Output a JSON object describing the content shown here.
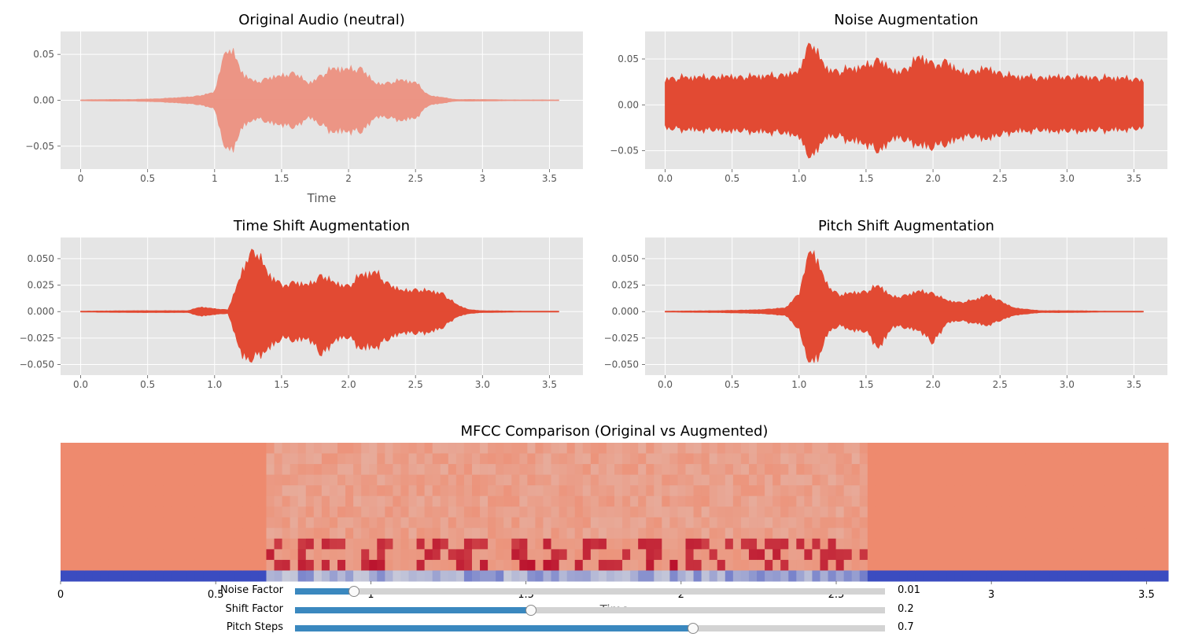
{
  "chart_data": [
    {
      "type": "line",
      "title": "Original Audio (neutral)",
      "xlabel": "Time",
      "ylabel": "",
      "xlim": [
        -0.15,
        3.75
      ],
      "ylim": [
        -0.075,
        0.075
      ],
      "xticks": [
        "0",
        "0.5",
        "1",
        "1.5",
        "2",
        "2.5",
        "3",
        "3.5"
      ],
      "yticks": [
        "0.05",
        "0.00",
        "−0.05"
      ],
      "x": [
        0.0,
        0.2,
        0.4,
        0.6,
        0.8,
        0.9,
        1.0,
        1.05,
        1.1,
        1.15,
        1.2,
        1.3,
        1.4,
        1.5,
        1.6,
        1.7,
        1.8,
        1.9,
        2.0,
        2.1,
        2.2,
        2.3,
        2.4,
        2.5,
        2.6,
        2.8,
        3.0,
        3.2,
        3.4,
        3.57
      ],
      "y_upper": [
        0.0005,
        0.001,
        0.001,
        0.002,
        0.004,
        0.006,
        0.01,
        0.045,
        0.068,
        0.055,
        0.035,
        0.022,
        0.028,
        0.03,
        0.035,
        0.02,
        0.032,
        0.04,
        0.038,
        0.04,
        0.02,
        0.022,
        0.025,
        0.022,
        0.006,
        0.001,
        0.001,
        0.0005,
        0.0005,
        0.0005
      ],
      "y_lower": [
        -0.0005,
        -0.001,
        -0.001,
        -0.002,
        -0.004,
        -0.006,
        -0.01,
        -0.045,
        -0.068,
        -0.055,
        -0.035,
        -0.022,
        -0.028,
        -0.03,
        -0.035,
        -0.02,
        -0.032,
        -0.04,
        -0.038,
        -0.04,
        -0.02,
        -0.022,
        -0.025,
        -0.022,
        -0.006,
        -0.001,
        -0.001,
        -0.0005,
        -0.0005,
        -0.0005
      ],
      "color": "#ec9585"
    },
    {
      "type": "line",
      "title": "Noise Augmentation",
      "xlabel": "",
      "ylabel": "",
      "xlim": [
        -0.15,
        3.75
      ],
      "ylim": [
        -0.07,
        0.08
      ],
      "xticks": [
        "0.0",
        "0.5",
        "1.0",
        "1.5",
        "2.0",
        "2.5",
        "3.0",
        "3.5"
      ],
      "yticks": [
        "0.05",
        "0.00",
        "−0.05"
      ],
      "x": [
        0.0,
        0.2,
        0.4,
        0.6,
        0.8,
        1.0,
        1.05,
        1.1,
        1.15,
        1.2,
        1.3,
        1.4,
        1.5,
        1.6,
        1.7,
        1.8,
        1.9,
        2.0,
        2.1,
        2.2,
        2.3,
        2.4,
        2.5,
        2.6,
        2.8,
        3.0,
        3.2,
        3.4,
        3.57
      ],
      "y_upper": [
        0.033,
        0.034,
        0.035,
        0.035,
        0.036,
        0.04,
        0.07,
        0.078,
        0.06,
        0.045,
        0.042,
        0.045,
        0.048,
        0.058,
        0.04,
        0.045,
        0.06,
        0.052,
        0.055,
        0.04,
        0.042,
        0.045,
        0.04,
        0.035,
        0.034,
        0.035,
        0.034,
        0.033,
        0.032
      ],
      "y_lower": [
        -0.03,
        -0.031,
        -0.032,
        -0.033,
        -0.034,
        -0.038,
        -0.06,
        -0.068,
        -0.05,
        -0.04,
        -0.04,
        -0.045,
        -0.048,
        -0.06,
        -0.04,
        -0.045,
        -0.05,
        -0.055,
        -0.05,
        -0.04,
        -0.04,
        -0.042,
        -0.038,
        -0.033,
        -0.032,
        -0.033,
        -0.032,
        -0.031,
        -0.03
      ],
      "color": "#e24a33"
    },
    {
      "type": "line",
      "title": "Time Shift Augmentation",
      "xlabel": "",
      "ylabel": "",
      "xlim": [
        -0.15,
        3.75
      ],
      "ylim": [
        -0.06,
        0.07
      ],
      "xticks": [
        "0.0",
        "0.5",
        "1.0",
        "1.5",
        "2.0",
        "2.5",
        "3.0",
        "3.5"
      ],
      "yticks": [
        "0.050",
        "0.025",
        "0.000",
        "−0.025",
        "−0.050"
      ],
      "x": [
        0.0,
        0.4,
        0.8,
        0.9,
        1.0,
        1.1,
        1.2,
        1.25,
        1.3,
        1.35,
        1.4,
        1.5,
        1.6,
        1.7,
        1.8,
        1.9,
        2.0,
        2.1,
        2.2,
        2.3,
        2.4,
        2.5,
        2.6,
        2.7,
        2.8,
        2.9,
        3.0,
        3.3,
        3.57
      ],
      "y_upper": [
        0.0005,
        0.001,
        0.001,
        0.005,
        0.003,
        0.002,
        0.04,
        0.06,
        0.068,
        0.055,
        0.04,
        0.03,
        0.032,
        0.028,
        0.04,
        0.03,
        0.028,
        0.04,
        0.042,
        0.03,
        0.022,
        0.024,
        0.022,
        0.02,
        0.008,
        0.002,
        0.001,
        0.0005,
        0.0005
      ],
      "y_lower": [
        -0.0005,
        -0.001,
        -0.001,
        -0.005,
        -0.003,
        -0.002,
        -0.045,
        -0.055,
        -0.05,
        -0.045,
        -0.04,
        -0.03,
        -0.032,
        -0.028,
        -0.048,
        -0.03,
        -0.028,
        -0.04,
        -0.038,
        -0.03,
        -0.022,
        -0.024,
        -0.022,
        -0.018,
        -0.006,
        -0.002,
        -0.001,
        -0.0005,
        -0.0005
      ],
      "color": "#e24a33"
    },
    {
      "type": "line",
      "title": "Pitch Shift Augmentation",
      "xlabel": "",
      "ylabel": "",
      "xlim": [
        -0.15,
        3.75
      ],
      "ylim": [
        -0.06,
        0.07
      ],
      "xticks": [
        "0.0",
        "0.5",
        "1.0",
        "1.5",
        "2.0",
        "2.5",
        "3.0",
        "3.5"
      ],
      "yticks": [
        "0.050",
        "0.025",
        "0.000",
        "−0.025",
        "−0.050"
      ],
      "x": [
        0.0,
        0.4,
        0.7,
        0.8,
        0.9,
        1.0,
        1.05,
        1.1,
        1.15,
        1.2,
        1.3,
        1.4,
        1.5,
        1.6,
        1.7,
        1.8,
        1.9,
        2.0,
        2.1,
        2.2,
        2.3,
        2.4,
        2.5,
        2.6,
        2.8,
        3.0,
        3.3,
        3.57
      ],
      "y_upper": [
        0.0005,
        0.001,
        0.002,
        0.003,
        0.004,
        0.02,
        0.055,
        0.068,
        0.05,
        0.03,
        0.018,
        0.02,
        0.022,
        0.028,
        0.015,
        0.018,
        0.022,
        0.02,
        0.012,
        0.01,
        0.012,
        0.018,
        0.012,
        0.004,
        0.001,
        0.001,
        0.0005,
        0.0005
      ],
      "y_lower": [
        -0.0005,
        -0.001,
        -0.002,
        -0.003,
        -0.004,
        -0.02,
        -0.05,
        -0.055,
        -0.05,
        -0.025,
        -0.015,
        -0.02,
        -0.022,
        -0.04,
        -0.015,
        -0.018,
        -0.02,
        -0.035,
        -0.012,
        -0.01,
        -0.012,
        -0.015,
        -0.01,
        -0.004,
        -0.001,
        -0.001,
        -0.0005,
        -0.0005
      ],
      "color": "#e24a33"
    },
    {
      "type": "heatmap",
      "title": "MFCC Comparison (Original vs Augmented)",
      "xlabel": "Time",
      "ylabel": "",
      "xlim": [
        0,
        3.57
      ],
      "xticks": [
        "0",
        "0.5",
        "1",
        "1.5",
        "2",
        "2.5",
        "3",
        "3.5"
      ],
      "colormap": "coolwarm",
      "colors": {
        "low": "#3b4cc0",
        "mid": "#dddddd",
        "high": "#b40426",
        "base": "#ee8a6e"
      },
      "rows": 13,
      "active_start": 0.67,
      "active_end": 2.6
    }
  ],
  "sliders": [
    {
      "label": "Noise Factor",
      "value": "0.01",
      "fraction": 0.1
    },
    {
      "label": "Shift Factor",
      "value": "0.2",
      "fraction": 0.4
    },
    {
      "label": "Pitch Steps",
      "value": "0.7",
      "fraction": 0.675
    }
  ]
}
